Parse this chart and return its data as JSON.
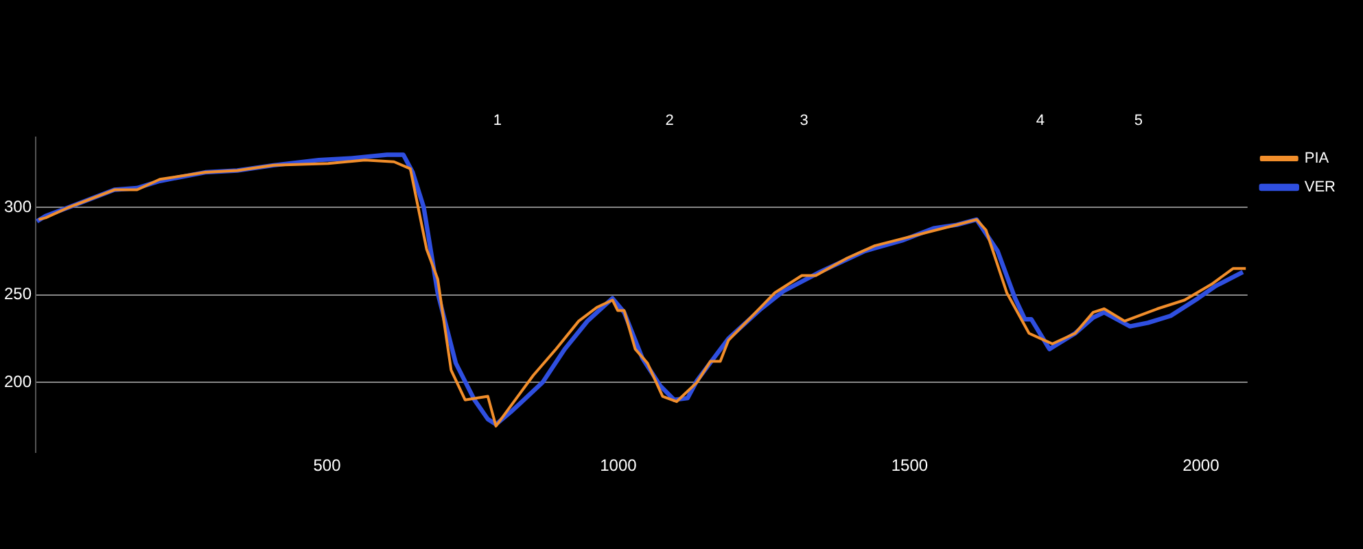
{
  "chart_data": {
    "type": "line",
    "xlim": [
      0,
      2080
    ],
    "xticks": [
      500,
      1000,
      1500,
      2000
    ],
    "ylim": [
      160,
      340
    ],
    "yticks": [
      200,
      250,
      300
    ],
    "grid": "y",
    "legend": "right",
    "marker": "none",
    "line_style": "solid",
    "annotations": [
      "1",
      "2",
      "3",
      "4",
      "5"
    ],
    "series": [
      {
        "name": "PIA",
        "color": "#f28e2b",
        "x": [
          5,
          17,
          57,
          135,
          174,
          213,
          291,
          346,
          408,
          502,
          565,
          615,
          643,
          671,
          690,
          713,
          737,
          776,
          790,
          854,
          893,
          932,
          964,
          990,
          999,
          1010,
          1029,
          1050,
          1076,
          1100,
          1135,
          1158,
          1175,
          1189,
          1268,
          1315,
          1339,
          1393,
          1440,
          1581,
          1615,
          1631,
          1667,
          1705,
          1745,
          1784,
          1815,
          1834,
          1869,
          1925,
          1972,
          2018,
          2055,
          2077
        ],
        "values": [
          293,
          294,
          300,
          310,
          310,
          316,
          320,
          321,
          324,
          325,
          327,
          326,
          322,
          276,
          259,
          207,
          190,
          192,
          175,
          204,
          219,
          235,
          243,
          247,
          241,
          241,
          219,
          211,
          192,
          189,
          200,
          212,
          212,
          224,
          251,
          261,
          261,
          271,
          278,
          290,
          293,
          287,
          251,
          228,
          222,
          228,
          240,
          242,
          235,
          242,
          247,
          256,
          265,
          265
        ]
      },
      {
        "name": "VER",
        "color": "#2f4fe0",
        "x": [
          2,
          17,
          57,
          135,
          174,
          213,
          291,
          346,
          408,
          486,
          541,
          603,
          631,
          647,
          666,
          690,
          721,
          753,
          776,
          790,
          815,
          838,
          870,
          908,
          947,
          990,
          1010,
          1041,
          1072,
          1096,
          1119,
          1135,
          1189,
          1245,
          1283,
          1346,
          1423,
          1487,
          1541,
          1581,
          1615,
          1651,
          1681,
          1698,
          1709,
          1740,
          1784,
          1815,
          1834,
          1878,
          1909,
          1948,
          1995,
          2025,
          2072
        ],
        "values": [
          292,
          295,
          300,
          310,
          311,
          315,
          320,
          321,
          324,
          327,
          328,
          330,
          330,
          320,
          300,
          251,
          211,
          190,
          179,
          176,
          183,
          190,
          200,
          219,
          235,
          248,
          240,
          214,
          198,
          190,
          191,
          201,
          225,
          242,
          252,
          263,
          275,
          281,
          288,
          290,
          293,
          275,
          248,
          236,
          236,
          219,
          228,
          237,
          240,
          232,
          234,
          238,
          248,
          255,
          263
        ]
      }
    ]
  }
}
